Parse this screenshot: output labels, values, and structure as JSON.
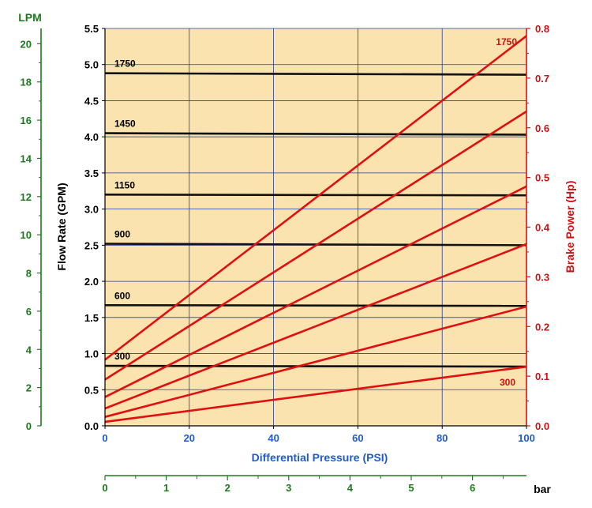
{
  "chart_data": {
    "type": "line",
    "x": {
      "label": "Differential Pressure (PSI)",
      "range": [
        0,
        100
      ],
      "ticks": [
        0,
        20,
        40,
        60,
        80,
        100
      ],
      "tick_labels": [
        "0",
        "20",
        "40",
        "60",
        "80",
        "100"
      ],
      "grid_every": 20
    },
    "x_secondary": {
      "unit": "bar",
      "ticks": [
        0,
        1,
        2,
        3,
        4,
        5,
        6
      ],
      "tick_labels": [
        "0",
        "1",
        "2",
        "3",
        "4",
        "5",
        "6"
      ]
    },
    "y_left": {
      "label": "Flow Rate (GPM)",
      "range": [
        0,
        5.5
      ],
      "ticks": [
        0,
        0.5,
        1.0,
        1.5,
        2.0,
        2.5,
        3.0,
        3.5,
        4.0,
        4.5,
        5.0,
        5.5
      ],
      "tick_labels": [
        "0.0",
        "0.5",
        "1.0",
        "1.5",
        "2.0",
        "2.5",
        "3.0",
        "3.5",
        "4.0",
        "4.5",
        "5.0",
        "5.5"
      ]
    },
    "y_lpm": {
      "unit": "LPM",
      "range": [
        0,
        20.8
      ],
      "ticks": [
        0,
        2,
        4,
        6,
        8,
        10,
        12,
        14,
        16,
        18,
        20
      ],
      "tick_labels": [
        "0",
        "2",
        "4",
        "6",
        "8",
        "10",
        "12",
        "14",
        "16",
        "18",
        "20"
      ]
    },
    "y_right": {
      "label": "Brake Power (Hp)",
      "range": [
        0,
        0.8
      ],
      "ticks": [
        0,
        0.1,
        0.2,
        0.3,
        0.4,
        0.5,
        0.6,
        0.7,
        0.8
      ],
      "tick_labels": [
        "0.0",
        "0.1",
        "0.2",
        "0.3",
        "0.4",
        "0.5",
        "0.6",
        "0.7",
        "0.8"
      ]
    },
    "grid": true,
    "flow_series": [
      {
        "name": "1750",
        "x": [
          0,
          100
        ],
        "y": [
          4.88,
          4.86
        ]
      },
      {
        "name": "1450",
        "x": [
          0,
          100
        ],
        "y": [
          4.05,
          4.03
        ]
      },
      {
        "name": "1150",
        "x": [
          0,
          100
        ],
        "y": [
          3.2,
          3.19
        ]
      },
      {
        "name": "900",
        "x": [
          0,
          100
        ],
        "y": [
          2.52,
          2.5
        ]
      },
      {
        "name": "600",
        "x": [
          0,
          100
        ],
        "y": [
          1.67,
          1.66
        ]
      },
      {
        "name": "300",
        "x": [
          0,
          100
        ],
        "y": [
          0.83,
          0.82
        ]
      }
    ],
    "power_series": [
      {
        "name": "1750",
        "x": [
          0,
          100
        ],
        "y": [
          0.133,
          0.785
        ]
      },
      {
        "name": "1450",
        "x": [
          0,
          100
        ],
        "y": [
          0.093,
          0.633
        ]
      },
      {
        "name": "1150",
        "x": [
          0,
          100
        ],
        "y": [
          0.058,
          0.482
        ]
      },
      {
        "name": "900",
        "x": [
          0,
          100
        ],
        "y": [
          0.035,
          0.366
        ]
      },
      {
        "name": "600",
        "x": [
          0,
          100
        ],
        "y": [
          0.018,
          0.24
        ]
      },
      {
        "name": "300",
        "x": [
          0,
          100
        ],
        "y": [
          0.008,
          0.119
        ]
      }
    ],
    "power_labels": [
      "1750",
      "300"
    ]
  },
  "colors": {
    "plot_bg": "#fbe3b0",
    "grid": "#2040a0",
    "flow_line": "#111111",
    "power_line": "#e01010",
    "x_axis_text": "#1f5bd1",
    "right_axis_text": "#d11010",
    "lpm_axis_text": "#1e7a1e"
  }
}
